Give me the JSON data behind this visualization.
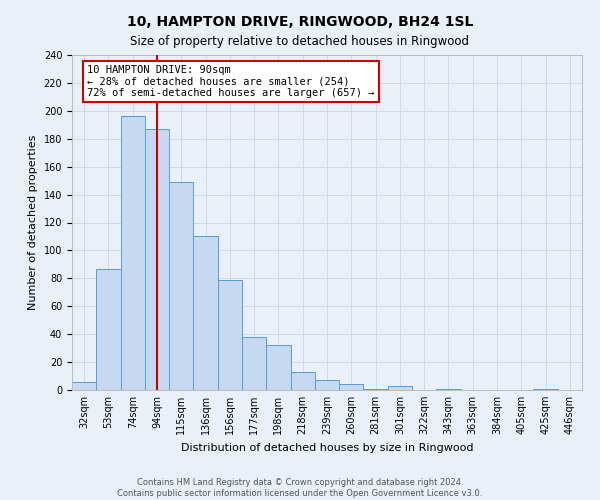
{
  "title": "10, HAMPTON DRIVE, RINGWOOD, BH24 1SL",
  "subtitle": "Size of property relative to detached houses in Ringwood",
  "xlabel": "Distribution of detached houses by size in Ringwood",
  "ylabel": "Number of detached properties",
  "bar_labels": [
    "32sqm",
    "53sqm",
    "74sqm",
    "94sqm",
    "115sqm",
    "136sqm",
    "156sqm",
    "177sqm",
    "198sqm",
    "218sqm",
    "239sqm",
    "260sqm",
    "281sqm",
    "301sqm",
    "322sqm",
    "343sqm",
    "363sqm",
    "384sqm",
    "405sqm",
    "425sqm",
    "446sqm"
  ],
  "bar_values": [
    6,
    87,
    196,
    187,
    149,
    110,
    79,
    38,
    32,
    13,
    7,
    4,
    1,
    3,
    0,
    1,
    0,
    0,
    0,
    1,
    0
  ],
  "bar_color": "#c6d9f0",
  "bar_edge_color": "#5b9bd5",
  "grid_color": "#d0d8e8",
  "background_color": "#eaf0f8",
  "vline_x_index": 3.0,
  "vline_color": "#cc0000",
  "annotation_title": "10 HAMPTON DRIVE: 90sqm",
  "annotation_line1": "← 28% of detached houses are smaller (254)",
  "annotation_line2": "72% of semi-detached houses are larger (657) →",
  "annotation_box_color": "#ffffff",
  "annotation_box_edge": "#cc0000",
  "footer_line1": "Contains HM Land Registry data © Crown copyright and database right 2024.",
  "footer_line2": "Contains public sector information licensed under the Open Government Licence v3.0.",
  "ylim": [
    0,
    240
  ],
  "yticks": [
    0,
    20,
    40,
    60,
    80,
    100,
    120,
    140,
    160,
    180,
    200,
    220,
    240
  ],
  "title_fontsize": 10,
  "subtitle_fontsize": 8.5,
  "ylabel_fontsize": 8,
  "xlabel_fontsize": 8,
  "tick_fontsize": 7,
  "annotation_fontsize": 7.5,
  "footer_fontsize": 6
}
